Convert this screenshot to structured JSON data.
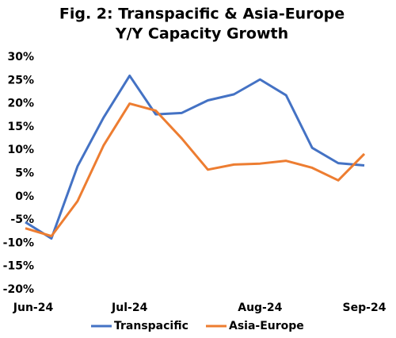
{
  "chart_data": {
    "type": "line",
    "title": "Fig. 2: Transpacific & Asia-Europe",
    "subtitle": "Y/Y Capacity Growth",
    "categories": [
      "Jun-24",
      null,
      null,
      null,
      "Jul-24",
      null,
      null,
      null,
      null,
      "Aug-24",
      null,
      null,
      null,
      "Sep-24"
    ],
    "series": [
      {
        "name": "Transpacific",
        "color": "#4472c4",
        "values": [
          -5.5,
          -9,
          6.5,
          17,
          26,
          17.7,
          18,
          20.7,
          22,
          25.2,
          21.8,
          10.5,
          7.2,
          6.7
        ]
      },
      {
        "name": "Asia-Europe",
        "color": "#ed7d31",
        "values": [
          -6.8,
          -8.5,
          -1,
          11,
          20,
          18.5,
          12.5,
          5.8,
          6.9,
          7.1,
          7.7,
          6.2,
          3.5,
          9.2
        ]
      }
    ],
    "ylim": [
      -20,
      30
    ],
    "yticks": [
      {
        "value": -20,
        "label": "-20%"
      },
      {
        "value": -15,
        "label": "-15%"
      },
      {
        "value": -10,
        "label": "-10%"
      },
      {
        "value": -5,
        "label": "-5%"
      },
      {
        "value": 0,
        "label": "0%"
      },
      {
        "value": 5,
        "label": "5%"
      },
      {
        "value": 10,
        "label": "10%"
      },
      {
        "value": 15,
        "label": "15%"
      },
      {
        "value": 20,
        "label": "20%"
      },
      {
        "value": 25,
        "label": "25%"
      },
      {
        "value": 30,
        "label": "30%"
      }
    ],
    "legend": "bottom"
  }
}
